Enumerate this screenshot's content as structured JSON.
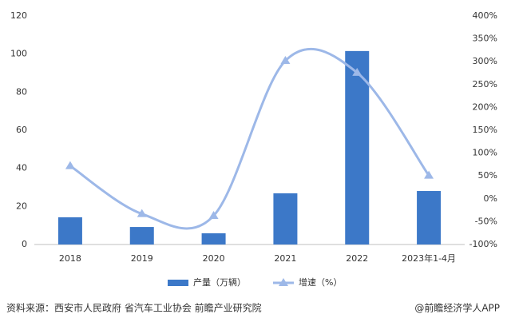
{
  "chart_data": {
    "type": "bar-line",
    "categories": [
      "2018",
      "2019",
      "2020",
      "2021",
      "2022",
      "2023年1-4月"
    ],
    "series": [
      {
        "name": "产量（万辆）",
        "type": "bar",
        "color": "#3c78c8",
        "values": [
          14.3,
          9.2,
          5.9,
          26.9,
          101.6,
          28.1
        ]
      },
      {
        "name": "增速（%）",
        "type": "line",
        "axis": "y2",
        "color": "#9db8e8",
        "values": [
          72,
          -33,
          -37,
          302,
          276,
          51
        ]
      }
    ],
    "ylim": [
      0,
      120
    ],
    "yticks": [
      0,
      20,
      40,
      60,
      80,
      100,
      120
    ],
    "y2lim": [
      -100,
      400
    ],
    "y2ticks": [
      {
        "value": -100,
        "label": "-100%"
      },
      {
        "value": -50,
        "label": "-50%"
      },
      {
        "value": 0,
        "label": "0%"
      },
      {
        "value": 50,
        "label": "50%"
      },
      {
        "value": 100,
        "label": "100%"
      },
      {
        "value": 150,
        "label": "150%"
      },
      {
        "value": 200,
        "label": "200%"
      },
      {
        "value": 250,
        "label": "250%"
      },
      {
        "value": 300,
        "label": "300%"
      },
      {
        "value": 350,
        "label": "350%"
      },
      {
        "value": 400,
        "label": "400%"
      }
    ],
    "grid": false,
    "legend": "bottom",
    "source": "资料来源：西安市人民政府 省汽车工业协会 前瞻产业研究院",
    "credit": "@前瞻经济学人APP"
  }
}
